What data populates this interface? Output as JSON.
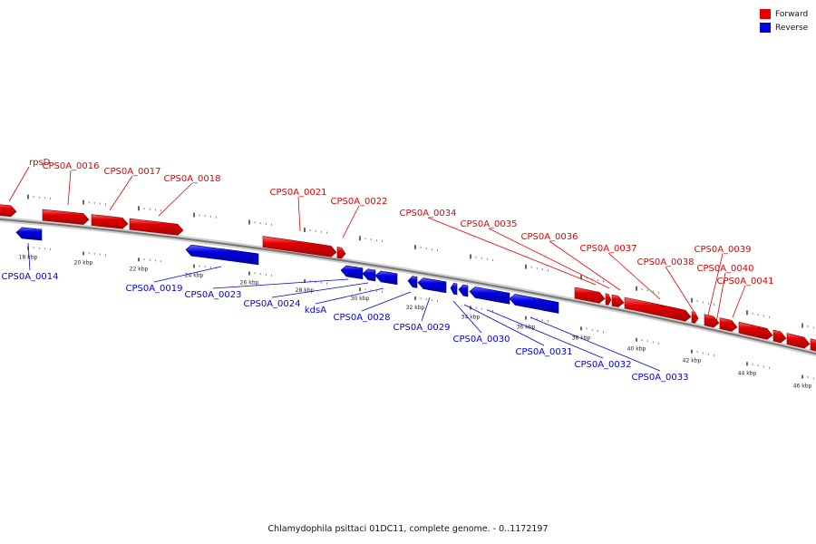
{
  "legend": {
    "forward_label": "Forward",
    "reverse_label": "Reverse",
    "forward_color": "#e60000",
    "reverse_color": "#0000e6"
  },
  "caption": "Chlamydophila psittaci 01DC11, complete genome. - 0..1172197",
  "scale": {
    "ticks": [
      {
        "kbp": 18,
        "label": "18 kbp"
      },
      {
        "kbp": 20,
        "label": "20 kbp"
      },
      {
        "kbp": 22,
        "label": "22 kbp"
      },
      {
        "kbp": 24,
        "label": "24 kbp"
      },
      {
        "kbp": 26,
        "label": "26 kbp"
      },
      {
        "kbp": 28,
        "label": "28 kbp"
      },
      {
        "kbp": 30,
        "label": "30 kbp"
      },
      {
        "kbp": 32,
        "label": "32 kbp"
      },
      {
        "kbp": 34,
        "label": "34 kbp"
      },
      {
        "kbp": 36,
        "label": "36 kbp"
      },
      {
        "kbp": 38,
        "label": "38 kbp"
      },
      {
        "kbp": 40,
        "label": "40 kbp"
      },
      {
        "kbp": 42,
        "label": "42 kbp"
      },
      {
        "kbp": 44,
        "label": "44 kbp"
      },
      {
        "kbp": 46,
        "label": "46 kbp"
      }
    ]
  },
  "genes": [
    {
      "label": "rpsD",
      "strand": "forward"
    },
    {
      "label": "CPS0A_0014",
      "strand": "reverse"
    },
    {
      "label": "CPS0A_0016",
      "strand": "forward"
    },
    {
      "label": "CPS0A_0017",
      "strand": "forward"
    },
    {
      "label": "CPS0A_0018",
      "strand": "forward"
    },
    {
      "label": "CPS0A_0019",
      "strand": "reverse"
    },
    {
      "label": "CPS0A_0021",
      "strand": "forward"
    },
    {
      "label": "CPS0A_0022",
      "strand": "forward"
    },
    {
      "label": "CPS0A_0023",
      "strand": "reverse"
    },
    {
      "label": "CPS0A_0024",
      "strand": "reverse"
    },
    {
      "label": "kdsA",
      "strand": "reverse"
    },
    {
      "label": "CPS0A_0028",
      "strand": "reverse"
    },
    {
      "label": "CPS0A_0029",
      "strand": "reverse"
    },
    {
      "label": "CPS0A_0030",
      "strand": "reverse"
    },
    {
      "label": "CPS0A_0031",
      "strand": "reverse"
    },
    {
      "label": "CPS0A_0032",
      "strand": "reverse"
    },
    {
      "label": "CPS0A_0033",
      "strand": "reverse"
    },
    {
      "label": "CPS0A_0034",
      "strand": "forward"
    },
    {
      "label": "CPS0A_0035",
      "strand": "forward"
    },
    {
      "label": "CPS0A_0036",
      "strand": "forward"
    },
    {
      "label": "CPS0A_0037",
      "strand": "forward"
    },
    {
      "label": "CPS0A_0038",
      "strand": "forward"
    },
    {
      "label": "CPS0A_0039",
      "strand": "forward"
    },
    {
      "label": "CPS0A_0040",
      "strand": "forward"
    },
    {
      "label": "CPS0A_0041",
      "strand": "forward"
    }
  ]
}
